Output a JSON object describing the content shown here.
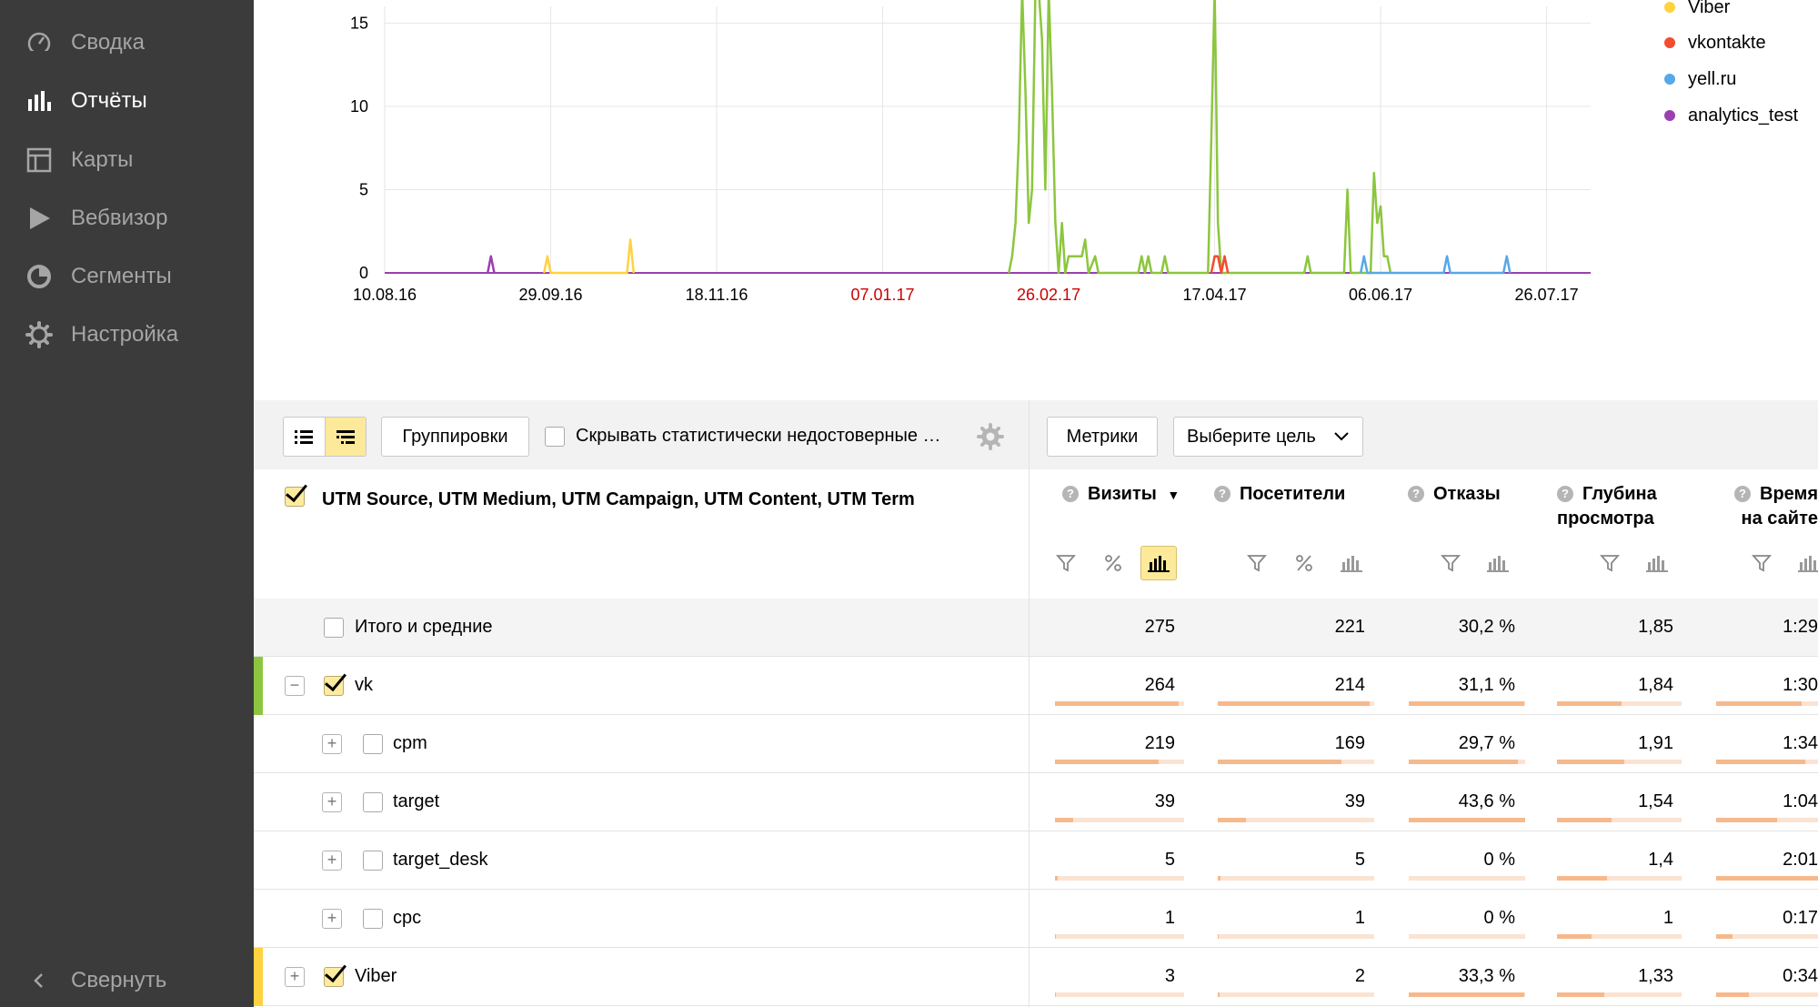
{
  "sidebar": {
    "items": [
      {
        "label": "Сводка",
        "icon": "dashboard-icon",
        "active": false
      },
      {
        "label": "Отчёты",
        "icon": "bar-chart-icon",
        "active": true
      },
      {
        "label": "Карты",
        "icon": "map-layout-icon",
        "active": false
      },
      {
        "label": "Вебвизор",
        "icon": "play-icon",
        "active": false
      },
      {
        "label": "Сегменты",
        "icon": "segments-icon",
        "active": false
      },
      {
        "label": "Настройка",
        "icon": "gear-icon",
        "active": false
      }
    ],
    "collapse_label": "Свернуть"
  },
  "chart_data": {
    "type": "line",
    "x_tick_labels": [
      "10.08.16",
      "29.09.16",
      "18.11.16",
      "07.01.17",
      "26.02.17",
      "17.04.17",
      "06.06.17",
      "26.07.17"
    ],
    "x_tick_label_colors": [
      "#000000",
      "#000000",
      "#000000",
      "#cc0000",
      "#cc0000",
      "#000000",
      "#000000",
      "#000000"
    ],
    "y_ticks": [
      0,
      5,
      10,
      15
    ],
    "ylim": [
      0,
      16
    ],
    "grid": true,
    "legend_visible": [
      "Viber",
      "vkontakte",
      "yell.ru",
      "analytics_test"
    ],
    "series": [
      {
        "name": "vk",
        "color": "#8cc63f",
        "points": [
          [
            "2017-02-14",
            0
          ],
          [
            "2017-02-15",
            1
          ],
          [
            "2017-02-16",
            3
          ],
          [
            "2017-02-17",
            8
          ],
          [
            "2017-02-18",
            17
          ],
          [
            "2017-02-19",
            11
          ],
          [
            "2017-02-20",
            3
          ],
          [
            "2017-02-21",
            5
          ],
          [
            "2017-02-22",
            17
          ],
          [
            "2017-02-23",
            17
          ],
          [
            "2017-02-24",
            14
          ],
          [
            "2017-02-25",
            5
          ],
          [
            "2017-02-26",
            17
          ],
          [
            "2017-02-27",
            11
          ],
          [
            "2017-02-28",
            3
          ],
          [
            "2017-03-01",
            0
          ],
          [
            "2017-03-02",
            3
          ],
          [
            "2017-03-03",
            0
          ],
          [
            "2017-03-04",
            1
          ],
          [
            "2017-03-05",
            1
          ],
          [
            "2017-03-07",
            1
          ],
          [
            "2017-03-08",
            1
          ],
          [
            "2017-03-09",
            2
          ],
          [
            "2017-03-10",
            0
          ],
          [
            "2017-03-12",
            1
          ],
          [
            "2017-03-13",
            0
          ],
          [
            "2017-03-25",
            0
          ],
          [
            "2017-03-26",
            1
          ],
          [
            "2017-03-27",
            0
          ],
          [
            "2017-03-28",
            1
          ],
          [
            "2017-03-29",
            0
          ],
          [
            "2017-04-01",
            0
          ],
          [
            "2017-04-02",
            1
          ],
          [
            "2017-04-03",
            0
          ],
          [
            "2017-04-15",
            0
          ],
          [
            "2017-04-16",
            8
          ],
          [
            "2017-04-17",
            17
          ],
          [
            "2017-04-18",
            3
          ],
          [
            "2017-04-19",
            0
          ],
          [
            "2017-05-14",
            0
          ],
          [
            "2017-05-15",
            1
          ],
          [
            "2017-05-16",
            0
          ],
          [
            "2017-05-26",
            0
          ],
          [
            "2017-05-27",
            5
          ],
          [
            "2017-05-28",
            0
          ],
          [
            "2017-06-03",
            0
          ],
          [
            "2017-06-04",
            6
          ],
          [
            "2017-06-05",
            3
          ],
          [
            "2017-06-06",
            4
          ],
          [
            "2017-06-07",
            1
          ],
          [
            "2017-06-08",
            1
          ],
          [
            "2017-06-09",
            0
          ]
        ]
      },
      {
        "name": "Viber",
        "color": "#ffd23f",
        "points": [
          [
            "2016-09-27",
            0
          ],
          [
            "2016-09-28",
            1
          ],
          [
            "2016-09-29",
            0
          ],
          [
            "2016-10-22",
            0
          ],
          [
            "2016-10-23",
            2
          ],
          [
            "2016-10-24",
            0
          ]
        ]
      },
      {
        "name": "vkontakte",
        "color": "#f44c2e",
        "points": [
          [
            "2017-04-16",
            0
          ],
          [
            "2017-04-17",
            1
          ],
          [
            "2017-04-18",
            1
          ],
          [
            "2017-04-19",
            0
          ],
          [
            "2017-04-20",
            1
          ],
          [
            "2017-04-21",
            0
          ]
        ]
      },
      {
        "name": "yell.ru",
        "color": "#56a8e8",
        "points": [
          [
            "2017-05-31",
            0
          ],
          [
            "2017-06-01",
            1
          ],
          [
            "2017-06-02",
            0
          ],
          [
            "2017-06-25",
            0
          ],
          [
            "2017-06-26",
            1
          ],
          [
            "2017-06-27",
            0
          ],
          [
            "2017-07-13",
            0
          ],
          [
            "2017-07-14",
            1
          ],
          [
            "2017-07-15",
            0
          ]
        ]
      },
      {
        "name": "analytics_test",
        "color": "#9b3fb0",
        "points": [
          [
            "2016-09-10",
            0
          ],
          [
            "2016-09-11",
            1
          ],
          [
            "2016-09-12",
            0
          ]
        ]
      }
    ]
  },
  "toolbar": {
    "groupings_label": "Группировки",
    "hide_unreliable_label": "Скрывать статистически недостоверные …",
    "metrics_label": "Метрики",
    "goal_label": "Выберите цель"
  },
  "table": {
    "dimension_header": "UTM Source, UTM Medium, UTM Campaign, UTM Content, UTM Term",
    "columns": [
      {
        "line1": "Визиты",
        "line2": "",
        "sort": "▼"
      },
      {
        "line1": "Посетители",
        "line2": ""
      },
      {
        "line1": "Отказы",
        "line2": ""
      },
      {
        "line1": "Глубина",
        "line2": "просмотра"
      },
      {
        "line1": "Время",
        "line2": "на сайте"
      }
    ],
    "total": {
      "label": "Итого и средние",
      "values": [
        "275",
        "221",
        "30,2 %",
        "1,85",
        "1:29"
      ]
    },
    "rows": [
      {
        "label": "vk",
        "level": 0,
        "checked": true,
        "expanded": true,
        "marker": "#8cc63f",
        "values": [
          "264",
          "214",
          "31,1 %",
          "1,84",
          "1:30"
        ],
        "bars": [
          0.96,
          0.97,
          0.99,
          0.52,
          0.78
        ]
      },
      {
        "label": "cpm",
        "level": 1,
        "checked": false,
        "expanded": false,
        "values": [
          "219",
          "169",
          "29,7 %",
          "1,91",
          "1:34"
        ],
        "bars": [
          0.8,
          0.79,
          0.94,
          0.54,
          0.82
        ]
      },
      {
        "label": "target",
        "level": 1,
        "checked": false,
        "expanded": false,
        "values": [
          "39",
          "39",
          "43,6 %",
          "1,54",
          "1:04"
        ],
        "bars": [
          0.14,
          0.18,
          1.0,
          0.44,
          0.56
        ]
      },
      {
        "label": "target_desk",
        "level": 1,
        "checked": false,
        "expanded": false,
        "values": [
          "5",
          "5",
          "0 %",
          "1,4",
          "2:01"
        ],
        "bars": [
          0.02,
          0.02,
          0.0,
          0.4,
          1.0
        ]
      },
      {
        "label": "cpc",
        "level": 1,
        "checked": false,
        "expanded": false,
        "values": [
          "1",
          "1",
          "0 %",
          "1",
          "0:17"
        ],
        "bars": [
          0.004,
          0.005,
          0.0,
          0.28,
          0.15
        ]
      },
      {
        "label": "Viber",
        "level": 0,
        "checked": true,
        "expanded": false,
        "marker": "#ffd23f",
        "values": [
          "3",
          "2",
          "33,3 %",
          "1,33",
          "0:34"
        ],
        "bars": [
          0.01,
          0.01,
          0.99,
          0.38,
          0.3
        ]
      }
    ]
  }
}
